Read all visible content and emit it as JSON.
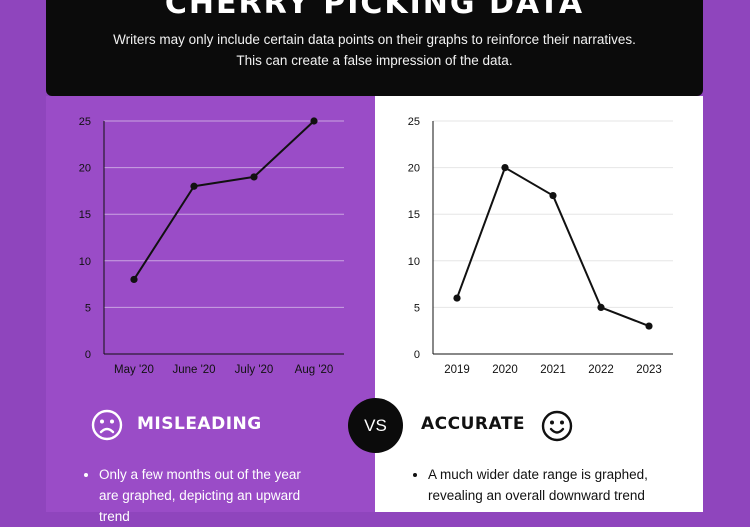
{
  "header": {
    "title": "CHERRY PICKING DATA",
    "subtitle": "Writers may only include certain data points on their graphs to reinforce their narratives. This can create a false impression of the data."
  },
  "chart_data": [
    {
      "type": "line",
      "categories": [
        "May '20",
        "June '20",
        "July '20",
        "Aug '20"
      ],
      "values": [
        8,
        18,
        19,
        25
      ],
      "ylim": [
        0,
        25
      ],
      "yticks": [
        0,
        5,
        10,
        15,
        20,
        25
      ],
      "grid": true,
      "legend": "none"
    },
    {
      "type": "line",
      "categories": [
        "2019",
        "2020",
        "2021",
        "2022",
        "2023"
      ],
      "values": [
        6,
        20,
        17,
        5,
        3
      ],
      "ylim": [
        0,
        25
      ],
      "yticks": [
        0,
        5,
        10,
        15,
        20,
        25
      ],
      "grid": true,
      "legend": "none"
    }
  ],
  "vs_label": "VS",
  "left": {
    "label": "MISLEADING",
    "icon": "sad-face-icon",
    "bullet": "Only a few months out of the year are graphed, depicting an upward trend"
  },
  "right": {
    "label": "ACCURATE",
    "icon": "smile-face-icon",
    "bullet": "A much wider date range is graphed, revealing an overall downward trend"
  },
  "colors": {
    "background": "#8f45bd",
    "left_panel": "#9a4cc7",
    "header": "#0b0b0b",
    "line": "#111111"
  }
}
